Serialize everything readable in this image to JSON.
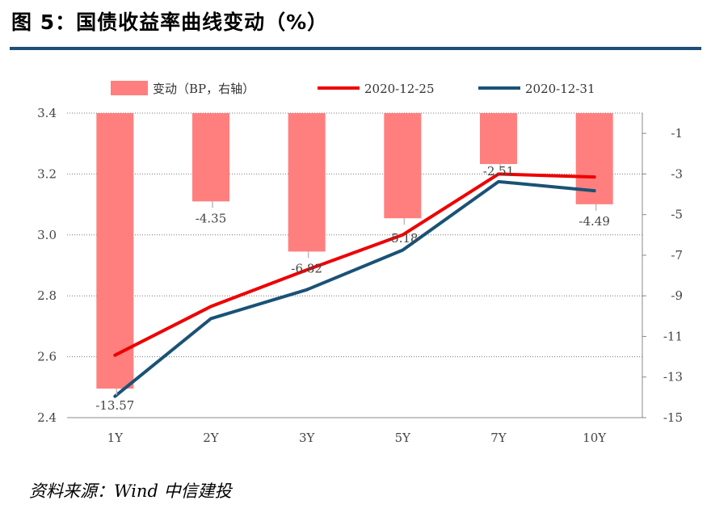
{
  "header": {
    "title": "图 5：国债收益率曲线变动（%）"
  },
  "footer": {
    "source": "资料来源：Wind 中信建投"
  },
  "colors": {
    "bar": "#ff7f7f",
    "line_1225": "#ee0000",
    "line_1231": "#1a5276",
    "rule": "#1f4e79"
  },
  "chart_data": {
    "type": "bar+line",
    "categories": [
      "1Y",
      "2Y",
      "3Y",
      "5Y",
      "7Y",
      "10Y"
    ],
    "bars": {
      "name": "变动（BP，右轴）",
      "values": [
        -13.57,
        -4.35,
        -6.82,
        -5.18,
        -2.51,
        -4.49
      ],
      "labels": [
        "-13.57",
        "-4.35",
        "-6.82",
        "-5.18",
        "-2.51",
        "-4.49"
      ]
    },
    "series": [
      {
        "name": "2020-12-25",
        "values": [
          2.605,
          2.765,
          2.885,
          3.0,
          3.2,
          3.19
        ]
      },
      {
        "name": "2020-12-31",
        "values": [
          2.47,
          2.725,
          2.82,
          2.95,
          3.175,
          3.145
        ]
      }
    ],
    "left_axis": {
      "ylim": [
        2.4,
        3.4
      ],
      "ticks": [
        "3.4",
        "3.2",
        "3.0",
        "2.8",
        "2.6",
        "2.4"
      ]
    },
    "right_axis": {
      "ylim": [
        -15,
        0
      ],
      "ticks": [
        "-1",
        "-3",
        "-5",
        "-7",
        "-9",
        "-11",
        "-13",
        "-15"
      ]
    }
  }
}
